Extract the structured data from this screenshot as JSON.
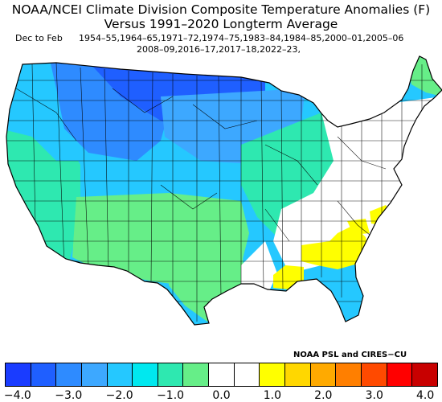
{
  "title": {
    "line1": "NOAA/NCEI Climate Division Composite Temperature Anomalies (F)",
    "line2": "Versus 1991–2020 Longterm Average"
  },
  "period": "Dec to Feb",
  "years": {
    "line1": "1954–55,1964–65,1971–72,1974–75,1983–84,1984–85,2000–01,2005–06",
    "line2": "2008–09,2016–17,2017–18,2022–23,"
  },
  "credit": "NOAA PSL and CIRES−CU",
  "colorbar": {
    "colors": [
      "#1a3cff",
      "#1f5fff",
      "#2e8bff",
      "#3da8ff",
      "#25c8ff",
      "#00e8ef",
      "#2ee8b0",
      "#66ee88",
      "#ffffff",
      "#ffffff",
      "#ffff00",
      "#ffd700",
      "#ffaa00",
      "#ff7f00",
      "#ff4a00",
      "#ff0000",
      "#c80000"
    ],
    "labels": [
      "−4.0",
      "−3.0",
      "−2.0",
      "−1.0",
      "0.0",
      "1.0",
      "2.0",
      "3.0",
      "4.0"
    ]
  },
  "regions": [
    {
      "name": "pacific-northwest",
      "color": "#25c8ff"
    },
    {
      "name": "northern-rockies",
      "color": "#2e8bff"
    },
    {
      "name": "northern-plains",
      "color": "#1f5fff"
    },
    {
      "name": "upper-midwest",
      "color": "#3da8ff"
    },
    {
      "name": "central-plains",
      "color": "#25c8ff"
    },
    {
      "name": "california-coast",
      "color": "#2ee8b0"
    },
    {
      "name": "southwest",
      "color": "#66ee88"
    },
    {
      "name": "great-lakes",
      "color": "#2ee8b0"
    },
    {
      "name": "texas",
      "color": "#66ee88"
    },
    {
      "name": "new-england",
      "color": "#66ee88"
    },
    {
      "name": "southeast",
      "color": "#ffff00"
    },
    {
      "name": "gulf-coast",
      "color": "#ffff00"
    }
  ]
}
